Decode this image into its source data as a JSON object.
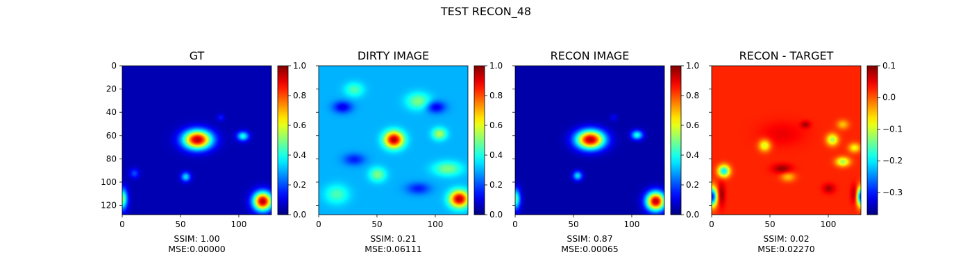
{
  "figure": {
    "title": "TEST RECON_48"
  },
  "chart_data": [
    {
      "type": "heatmap",
      "title": "GT",
      "x_ticks": [
        "0",
        "50",
        "100"
      ],
      "y_ticks": [
        "0",
        "20",
        "40",
        "60",
        "80",
        "100",
        "120"
      ],
      "xlim": [
        0,
        128
      ],
      "ylim": [
        0,
        128
      ],
      "colorbar": {
        "colormap": "jet",
        "range": [
          0.0,
          1.0
        ],
        "ticks": [
          "0.0",
          "0.2",
          "0.4",
          "0.6",
          "0.8",
          "1.0"
        ]
      },
      "caption": [
        "SSIM: 1.00",
        "MSE:0.00000"
      ],
      "background": 0.05,
      "blobs": [
        {
          "x": 64,
          "y": 63,
          "rx": 12,
          "ry": 8,
          "value": 0.95
        },
        {
          "x": 103,
          "y": 60,
          "rx": 5,
          "ry": 4,
          "value": 0.4
        },
        {
          "x": 120,
          "y": 116,
          "rx": 8,
          "ry": 8,
          "value": 0.95
        },
        {
          "x": 0,
          "y": 114,
          "rx": 4,
          "ry": 9,
          "value": 0.5
        },
        {
          "x": 54,
          "y": 95,
          "rx": 4,
          "ry": 4,
          "value": 0.35
        },
        {
          "x": 10,
          "y": 92,
          "rx": 4,
          "ry": 4,
          "value": 0.2
        },
        {
          "x": 84,
          "y": 44,
          "rx": 3,
          "ry": 3,
          "value": 0.15
        }
      ]
    },
    {
      "type": "heatmap",
      "title": "DIRTY IMAGE",
      "x_ticks": [
        "0",
        "50",
        "100"
      ],
      "xlim": [
        0,
        128
      ],
      "ylim": [
        0,
        128
      ],
      "colorbar": {
        "colormap": "jet",
        "range": [
          0.0,
          1.0
        ],
        "ticks": [
          "0.0",
          "0.2",
          "0.4",
          "0.6",
          "0.8",
          "1.0"
        ]
      },
      "caption": [
        "SSIM: 0.21",
        "MSE:0.06111"
      ],
      "background": 0.3,
      "blobs": [
        {
          "x": 64,
          "y": 63,
          "rx": 8,
          "ry": 7,
          "value": 0.95
        },
        {
          "x": 120,
          "y": 114,
          "rx": 8,
          "ry": 7,
          "value": 0.95
        },
        {
          "x": 103,
          "y": 58,
          "rx": 6,
          "ry": 5,
          "value": 0.55
        },
        {
          "x": 30,
          "y": 20,
          "rx": 8,
          "ry": 6,
          "value": 0.45
        },
        {
          "x": 85,
          "y": 30,
          "rx": 10,
          "ry": 7,
          "value": 0.5
        },
        {
          "x": 110,
          "y": 88,
          "rx": 12,
          "ry": 6,
          "value": 0.5
        },
        {
          "x": 50,
          "y": 93,
          "rx": 7,
          "ry": 6,
          "value": 0.5
        },
        {
          "x": 15,
          "y": 110,
          "rx": 10,
          "ry": 8,
          "value": 0.45
        },
        {
          "x": 20,
          "y": 35,
          "rx": 8,
          "ry": 5,
          "value": 0.1
        },
        {
          "x": 100,
          "y": 35,
          "rx": 8,
          "ry": 5,
          "value": 0.1
        },
        {
          "x": 30,
          "y": 80,
          "rx": 9,
          "ry": 5,
          "value": 0.15
        },
        {
          "x": 85,
          "y": 105,
          "rx": 10,
          "ry": 5,
          "value": 0.15
        }
      ]
    },
    {
      "type": "heatmap",
      "title": "RECON IMAGE",
      "x_ticks": [
        "0",
        "50",
        "100"
      ],
      "xlim": [
        0,
        128
      ],
      "ylim": [
        0,
        128
      ],
      "colorbar": {
        "colormap": "jet",
        "range": [
          0.0,
          1.0
        ],
        "ticks": [
          "0.0",
          "0.2",
          "0.4",
          "0.6",
          "0.8",
          "1.0"
        ]
      },
      "caption": [
        "SSIM: 0.87",
        "MSE:0.00065"
      ],
      "background": 0.04,
      "blobs": [
        {
          "x": 64,
          "y": 63,
          "rx": 12,
          "ry": 8,
          "value": 0.95
        },
        {
          "x": 104,
          "y": 59,
          "rx": 5,
          "ry": 4,
          "value": 0.4
        },
        {
          "x": 120,
          "y": 116,
          "rx": 8,
          "ry": 8,
          "value": 0.95
        },
        {
          "x": 0,
          "y": 114,
          "rx": 4,
          "ry": 9,
          "value": 0.45
        },
        {
          "x": 53,
          "y": 94,
          "rx": 4,
          "ry": 4,
          "value": 0.35
        },
        {
          "x": 84,
          "y": 44,
          "rx": 3,
          "ry": 3,
          "value": 0.12
        }
      ]
    },
    {
      "type": "heatmap",
      "title": "RECON - TARGET",
      "x_ticks": [
        "0",
        "50",
        "100"
      ],
      "xlim": [
        0,
        128
      ],
      "ylim": [
        0,
        128
      ],
      "colorbar": {
        "colormap": "jet",
        "range": [
          -0.37,
          0.1
        ],
        "ticks": [
          "0.1",
          "0.0",
          "−0.1",
          "−0.2",
          "−0.3"
        ]
      },
      "caption": [
        "SSIM: 0.02",
        "MSE:0.02270"
      ],
      "background": 0.025,
      "blobs": [
        {
          "x": 10,
          "y": 90,
          "rx": 5,
          "ry": 5,
          "value": -0.2
        },
        {
          "x": 45,
          "y": 68,
          "rx": 5,
          "ry": 5,
          "value": -0.1
        },
        {
          "x": 103,
          "y": 63,
          "rx": 5,
          "ry": 5,
          "value": -0.12
        },
        {
          "x": 112,
          "y": 82,
          "rx": 6,
          "ry": 4,
          "value": -0.12
        },
        {
          "x": 122,
          "y": 70,
          "rx": 5,
          "ry": 4,
          "value": -0.08
        },
        {
          "x": 0,
          "y": 112,
          "rx": 4,
          "ry": 8,
          "value": -0.3
        },
        {
          "x": 128,
          "y": 112,
          "rx": 4,
          "ry": 8,
          "value": -0.3
        },
        {
          "x": 112,
          "y": 50,
          "rx": 5,
          "ry": 4,
          "value": -0.05
        },
        {
          "x": 65,
          "y": 95,
          "rx": 6,
          "ry": 4,
          "value": -0.05
        },
        {
          "x": 60,
          "y": 58,
          "rx": 18,
          "ry": 10,
          "value": 0.05
        },
        {
          "x": 60,
          "y": 88,
          "rx": 8,
          "ry": 4,
          "value": 0.09
        },
        {
          "x": 8,
          "y": 110,
          "rx": 3,
          "ry": 10,
          "value": 0.09
        },
        {
          "x": 122,
          "y": 110,
          "rx": 3,
          "ry": 8,
          "value": 0.09
        },
        {
          "x": 80,
          "y": 50,
          "rx": 4,
          "ry": 3,
          "value": 0.08
        },
        {
          "x": 100,
          "y": 105,
          "rx": 5,
          "ry": 4,
          "value": 0.08
        }
      ]
    }
  ]
}
